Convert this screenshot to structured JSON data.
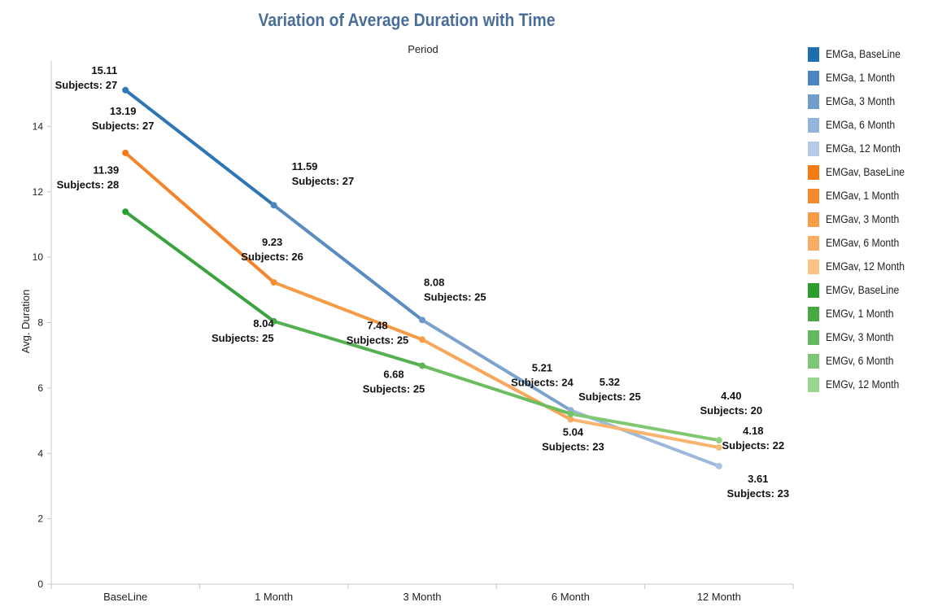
{
  "chart_data": {
    "type": "line",
    "title": "Variation of Average Duration with Time",
    "column_header": "Period",
    "xlabel": "",
    "ylabel": "Avg. Duration",
    "categories": [
      "BaseLine",
      "1 Month",
      "3 Month",
      "6 Month",
      "12 Month"
    ],
    "ylim": [
      0,
      16
    ],
    "yticks": [
      0,
      2,
      4,
      6,
      8,
      10,
      12,
      14
    ],
    "grid": false,
    "legend_position": "right",
    "series": [
      {
        "key": "EMGa",
        "values": [
          15.11,
          11.59,
          8.08,
          5.32,
          3.61
        ],
        "labels": [
          "15.11",
          "11.59",
          "8.08",
          "5.32",
          "3.61"
        ],
        "subjects": [
          "Subjects: 27",
          "Subjects: 27",
          "Subjects: 25",
          "Subjects: 25",
          "Subjects: 23"
        ],
        "segment_colors": [
          "#2e77b4",
          "#5b8cc0",
          "#7ba2cc",
          "#9cb9dc"
        ],
        "point_colors": [
          "#2e77b4",
          "#4c84be",
          "#6e9ac9",
          "#8fb1d9",
          "#a9c3e3"
        ]
      },
      {
        "key": "EMGav",
        "values": [
          13.19,
          9.23,
          7.48,
          5.04,
          4.18
        ],
        "labels": [
          "13.19",
          "9.23",
          "7.48",
          "5.04",
          "4.18"
        ],
        "subjects": [
          "Subjects: 27",
          "Subjects: 26",
          "Subjects: 25",
          "Subjects: 23",
          "Subjects: 22"
        ],
        "segment_colors": [
          "#f4852c",
          "#f79a45",
          "#f8a65a",
          "#f9b46f"
        ],
        "point_colors": [
          "#f47a18",
          "#f58f33",
          "#f79d4a",
          "#f8ab60",
          "#f9bd80"
        ]
      },
      {
        "key": "EMGv",
        "values": [
          11.39,
          8.04,
          6.68,
          5.21,
          4.4
        ],
        "labels": [
          "11.39",
          "8.04",
          "6.68",
          "5.21",
          "4.40"
        ],
        "subjects": [
          "Subjects: 28",
          "Subjects: 25",
          "Subjects: 25",
          "Subjects: 24",
          "Subjects: 20"
        ],
        "segment_colors": [
          "#3aa33e",
          "#55b050",
          "#6cbd60",
          "#80c872"
        ],
        "point_colors": [
          "#2ca02c",
          "#47aa44",
          "#5fb657",
          "#78c46c",
          "#8fd282"
        ]
      }
    ]
  },
  "legend": [
    {
      "label": "EMGa, BaseLine",
      "color": "#1f6fb0"
    },
    {
      "label": "EMGa, 1 Month",
      "color": "#4b84c2"
    },
    {
      "label": "EMGa, 3 Month",
      "color": "#6f9bcd"
    },
    {
      "label": "EMGa, 6 Month",
      "color": "#93b4dc"
    },
    {
      "label": "EMGa, 12 Month",
      "color": "#b3cbe9"
    },
    {
      "label": "EMGav, BaseLine",
      "color": "#f47a12"
    },
    {
      "label": "EMGav, 1 Month",
      "color": "#f6892b"
    },
    {
      "label": "EMGav, 3 Month",
      "color": "#f89c47"
    },
    {
      "label": "EMGav, 6 Month",
      "color": "#f9ad63"
    },
    {
      "label": "EMGav, 12 Month",
      "color": "#fbc185"
    },
    {
      "label": "EMGv, BaseLine",
      "color": "#2b9d2b"
    },
    {
      "label": "EMGv, 1 Month",
      "color": "#46ab43"
    },
    {
      "label": "EMGv, 3 Month",
      "color": "#62b95b"
    },
    {
      "label": "EMGv, 6 Month",
      "color": "#7cc674"
    },
    {
      "label": "EMGv, 12 Month",
      "color": "#98d68e"
    }
  ]
}
